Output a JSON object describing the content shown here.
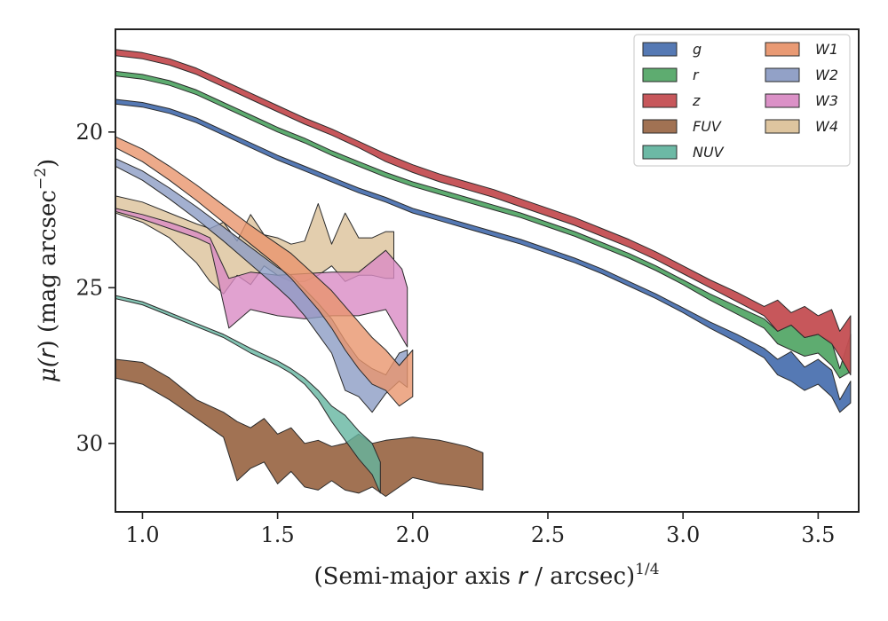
{
  "chart_data": {
    "type": "area",
    "title": "",
    "xlabel_main": "(Semi-major axis ",
    "xlabel_var": "r",
    "xlabel_rest": " / arcsec)",
    "xlabel_exp": "1/4",
    "ylabel_main": "μ(",
    "ylabel_var": "r",
    "ylabel_rest": ") (mag arcsec",
    "ylabel_exp": "−2",
    "ylabel_close": ")",
    "xlim": [
      0.9,
      3.65
    ],
    "ylim": [
      32.2,
      16.7
    ],
    "y_inverted": true,
    "grid": false,
    "legend_position": "top-right",
    "x_ticks": [
      1.0,
      1.5,
      2.0,
      2.5,
      3.0,
      3.5
    ],
    "x_tick_labels": [
      "1.0",
      "1.5",
      "2.0",
      "2.5",
      "3.0",
      "3.5"
    ],
    "y_ticks": [
      20,
      25,
      30
    ],
    "y_tick_labels": [
      "20",
      "25",
      "30"
    ],
    "series": [
      {
        "name": "g",
        "color": "#4c72b0",
        "x": [
          0.9,
          1.0,
          1.1,
          1.2,
          1.3,
          1.4,
          1.5,
          1.6,
          1.7,
          1.8,
          1.9,
          2.0,
          2.1,
          2.2,
          2.3,
          2.4,
          2.5,
          2.6,
          2.7,
          2.8,
          2.9,
          3.0,
          3.1,
          3.2,
          3.3,
          3.35,
          3.4,
          3.45,
          3.5,
          3.55,
          3.58,
          3.62
        ],
        "lo": [
          18.95,
          19.05,
          19.25,
          19.55,
          19.95,
          20.35,
          20.75,
          21.1,
          21.45,
          21.8,
          22.1,
          22.45,
          22.7,
          22.95,
          23.2,
          23.45,
          23.75,
          24.05,
          24.4,
          24.8,
          25.2,
          25.65,
          26.1,
          26.5,
          26.95,
          27.3,
          27.05,
          27.55,
          27.3,
          27.65,
          28.6,
          28.0
        ],
        "hi": [
          19.1,
          19.2,
          19.4,
          19.7,
          20.1,
          20.5,
          20.9,
          21.25,
          21.6,
          21.95,
          22.25,
          22.6,
          22.85,
          23.1,
          23.35,
          23.6,
          23.9,
          24.2,
          24.55,
          24.95,
          25.35,
          25.8,
          26.3,
          26.75,
          27.25,
          27.8,
          28.0,
          28.3,
          28.1,
          28.5,
          29.0,
          28.7
        ]
      },
      {
        "name": "r",
        "color": "#55a868",
        "x": [
          0.9,
          1.0,
          1.1,
          1.2,
          1.3,
          1.4,
          1.5,
          1.6,
          1.7,
          1.8,
          1.9,
          2.0,
          2.1,
          2.2,
          2.3,
          2.4,
          2.5,
          2.6,
          2.7,
          2.8,
          2.9,
          3.0,
          3.1,
          3.2,
          3.3,
          3.35,
          3.4,
          3.45,
          3.5,
          3.55,
          3.58,
          3.62
        ],
        "lo": [
          18.05,
          18.15,
          18.35,
          18.65,
          19.05,
          19.45,
          19.85,
          20.2,
          20.6,
          20.95,
          21.3,
          21.6,
          21.85,
          22.1,
          22.35,
          22.6,
          22.9,
          23.2,
          23.55,
          23.9,
          24.3,
          24.75,
          25.2,
          25.6,
          26.0,
          26.4,
          26.2,
          26.6,
          26.5,
          26.75,
          27.6,
          26.5
        ],
        "hi": [
          18.2,
          18.3,
          18.5,
          18.8,
          19.2,
          19.6,
          20.0,
          20.35,
          20.75,
          21.1,
          21.45,
          21.75,
          22.0,
          22.25,
          22.5,
          22.75,
          23.05,
          23.35,
          23.7,
          24.05,
          24.45,
          24.9,
          25.4,
          25.85,
          26.3,
          26.8,
          27.0,
          27.2,
          27.1,
          27.5,
          27.9,
          27.7
        ]
      },
      {
        "name": "z",
        "color": "#c44e52",
        "x": [
          0.9,
          1.0,
          1.1,
          1.2,
          1.3,
          1.4,
          1.5,
          1.6,
          1.7,
          1.8,
          1.9,
          2.0,
          2.1,
          2.2,
          2.3,
          2.4,
          2.5,
          2.6,
          2.7,
          2.8,
          2.9,
          3.0,
          3.1,
          3.2,
          3.3,
          3.35,
          3.4,
          3.45,
          3.5,
          3.55,
          3.58,
          3.62
        ],
        "lo": [
          17.35,
          17.45,
          17.65,
          17.95,
          18.35,
          18.75,
          19.15,
          19.55,
          19.9,
          20.3,
          20.7,
          21.05,
          21.35,
          21.6,
          21.85,
          22.15,
          22.45,
          22.75,
          23.1,
          23.45,
          23.85,
          24.3,
          24.75,
          25.15,
          25.6,
          25.4,
          25.8,
          25.6,
          25.9,
          25.7,
          26.4,
          25.9
        ],
        "hi": [
          17.55,
          17.65,
          17.85,
          18.15,
          18.55,
          18.95,
          19.35,
          19.75,
          20.1,
          20.5,
          20.95,
          21.3,
          21.6,
          21.85,
          22.1,
          22.4,
          22.7,
          23.0,
          23.35,
          23.7,
          24.1,
          24.55,
          25.0,
          25.45,
          25.9,
          26.4,
          26.2,
          26.6,
          26.5,
          26.8,
          27.2,
          27.8
        ]
      },
      {
        "name": "FUV",
        "color": "#9c6a4a",
        "x": [
          0.9,
          1.0,
          1.1,
          1.2,
          1.3,
          1.35,
          1.4,
          1.45,
          1.5,
          1.55,
          1.6,
          1.65,
          1.7,
          1.75,
          1.8,
          1.85,
          1.9,
          2.0,
          2.1,
          2.2,
          2.26
        ],
        "lo": [
          27.3,
          27.4,
          27.9,
          28.6,
          29.0,
          29.3,
          29.5,
          29.2,
          29.7,
          29.5,
          30.0,
          29.9,
          30.1,
          30.0,
          29.7,
          30.0,
          29.9,
          29.8,
          29.9,
          30.1,
          30.3
        ],
        "hi": [
          27.9,
          28.1,
          28.6,
          29.2,
          29.8,
          31.2,
          30.8,
          30.6,
          31.3,
          30.9,
          31.4,
          31.5,
          31.2,
          31.5,
          31.6,
          31.4,
          31.7,
          31.1,
          31.3,
          31.4,
          31.5
        ]
      },
      {
        "name": "NUV",
        "color": "#64b5a0",
        "x": [
          0.9,
          1.0,
          1.1,
          1.2,
          1.3,
          1.4,
          1.5,
          1.55,
          1.6,
          1.65,
          1.7,
          1.75,
          1.8,
          1.85,
          1.88
        ],
        "lo": [
          25.25,
          25.45,
          25.8,
          26.15,
          26.5,
          26.95,
          27.35,
          27.6,
          27.9,
          28.3,
          28.8,
          29.1,
          29.6,
          30.0,
          30.6
        ],
        "hi": [
          25.35,
          25.55,
          25.9,
          26.25,
          26.6,
          27.1,
          27.5,
          27.75,
          28.1,
          28.6,
          29.3,
          29.9,
          30.5,
          31.0,
          31.6
        ]
      },
      {
        "name": "W1",
        "color": "#e8956d",
        "x": [
          0.9,
          1.0,
          1.1,
          1.2,
          1.3,
          1.4,
          1.5,
          1.55,
          1.6,
          1.65,
          1.7,
          1.75,
          1.8,
          1.85,
          1.9,
          1.95,
          2.0
        ],
        "lo": [
          20.15,
          20.55,
          21.1,
          21.7,
          22.35,
          23.0,
          23.6,
          23.9,
          24.3,
          24.7,
          25.1,
          25.6,
          26.1,
          26.6,
          27.0,
          27.5,
          27.0
        ],
        "hi": [
          20.5,
          20.95,
          21.55,
          22.2,
          22.9,
          23.6,
          24.3,
          24.7,
          25.2,
          25.7,
          26.3,
          27.0,
          27.6,
          28.1,
          28.3,
          28.8,
          28.5
        ]
      },
      {
        "name": "W2",
        "color": "#8c9cc4",
        "x": [
          0.9,
          1.0,
          1.1,
          1.2,
          1.3,
          1.4,
          1.5,
          1.55,
          1.6,
          1.65,
          1.7,
          1.75,
          1.8,
          1.85,
          1.9,
          1.95,
          1.98
        ],
        "lo": [
          20.85,
          21.25,
          21.8,
          22.4,
          23.05,
          23.7,
          24.35,
          24.6,
          25.05,
          25.5,
          26.0,
          26.7,
          27.3,
          27.6,
          27.8,
          27.1,
          27.0
        ],
        "hi": [
          21.1,
          21.55,
          22.15,
          22.8,
          23.5,
          24.25,
          25.0,
          25.4,
          25.9,
          26.5,
          27.1,
          28.3,
          28.5,
          29.0,
          28.4,
          28.0,
          28.2
        ]
      },
      {
        "name": "W3",
        "color": "#d98bc4",
        "x": [
          0.9,
          1.0,
          1.1,
          1.2,
          1.25,
          1.32,
          1.4,
          1.5,
          1.6,
          1.7,
          1.8,
          1.9,
          1.96,
          1.98
        ],
        "lo": [
          22.45,
          22.65,
          22.9,
          23.2,
          23.4,
          24.7,
          24.5,
          24.6,
          24.55,
          24.5,
          24.5,
          23.8,
          24.4,
          25.0
        ],
        "hi": [
          22.55,
          22.8,
          23.1,
          23.4,
          23.6,
          26.3,
          25.7,
          25.9,
          26.0,
          25.9,
          25.9,
          25.7,
          26.6,
          26.9
        ]
      },
      {
        "name": "W4",
        "color": "#dcc29a",
        "x": [
          0.9,
          1.0,
          1.1,
          1.2,
          1.25,
          1.3,
          1.35,
          1.4,
          1.45,
          1.5,
          1.55,
          1.6,
          1.65,
          1.7,
          1.75,
          1.8,
          1.85,
          1.9,
          1.93
        ],
        "lo": [
          22.05,
          22.25,
          22.6,
          22.95,
          23.1,
          22.9,
          23.5,
          22.65,
          23.3,
          23.4,
          23.6,
          23.5,
          22.3,
          23.6,
          22.6,
          23.4,
          23.4,
          23.2,
          23.2
        ],
        "hi": [
          22.6,
          22.9,
          23.4,
          24.2,
          24.8,
          25.2,
          24.6,
          24.9,
          24.3,
          24.6,
          24.8,
          24.8,
          24.6,
          24.3,
          24.8,
          24.6,
          24.6,
          24.7,
          24.7
        ]
      }
    ],
    "legend_columns": [
      [
        "g",
        "r",
        "z",
        "FUV",
        "NUV"
      ],
      [
        "W1",
        "W2",
        "W3",
        "W4"
      ]
    ]
  }
}
